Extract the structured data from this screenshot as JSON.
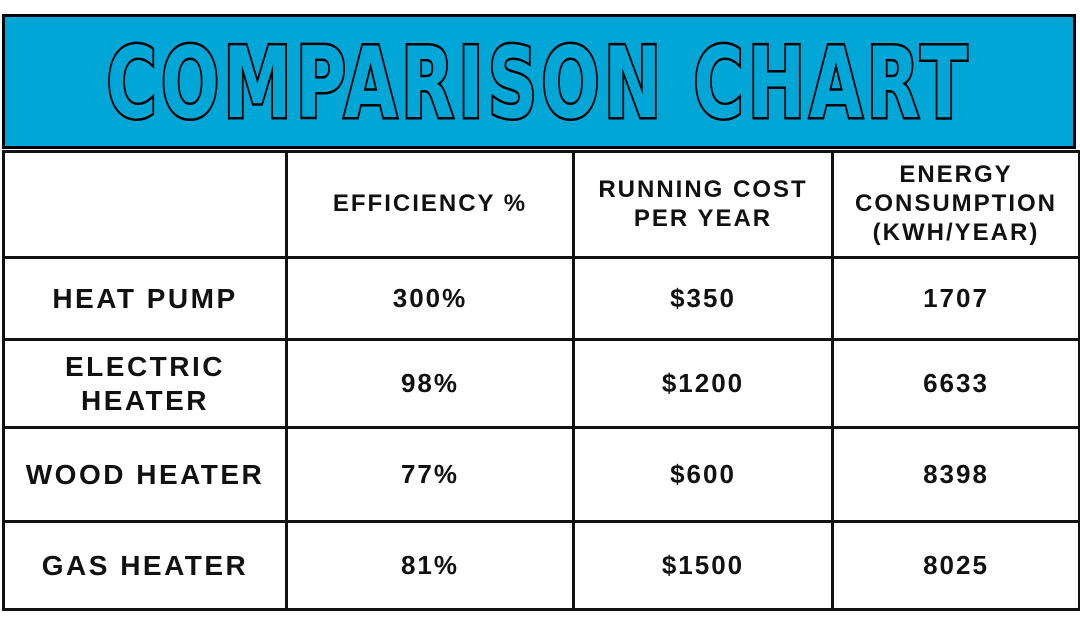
{
  "title": "COMPARISON CHART",
  "colors": {
    "banner": "#00a7d6",
    "border": "#111111",
    "text": "#111111",
    "background": "#ffffff"
  },
  "chart_data": {
    "type": "table",
    "title": "COMPARISON CHART",
    "columns": [
      {
        "lines": [
          ""
        ]
      },
      {
        "lines": [
          "EFFICIENCY %"
        ]
      },
      {
        "lines": [
          "RUNNING COST",
          "PER YEAR"
        ]
      },
      {
        "lines": [
          "ENERGY",
          "CONSUMPTION",
          "(KWH/YEAR)"
        ]
      }
    ],
    "rows": [
      {
        "label_lines": [
          "HEAT PUMP"
        ],
        "values": [
          "300%",
          "$350",
          "1707"
        ]
      },
      {
        "label_lines": [
          "ELECTRIC",
          "HEATER"
        ],
        "values": [
          "98%",
          "$1200",
          "6633"
        ]
      },
      {
        "label_lines": [
          "WOOD HEATER"
        ],
        "values": [
          "77%",
          "$600",
          "8398"
        ]
      },
      {
        "label_lines": [
          "GAS HEATER"
        ],
        "values": [
          "81%",
          "$1500",
          "8025"
        ]
      }
    ]
  }
}
